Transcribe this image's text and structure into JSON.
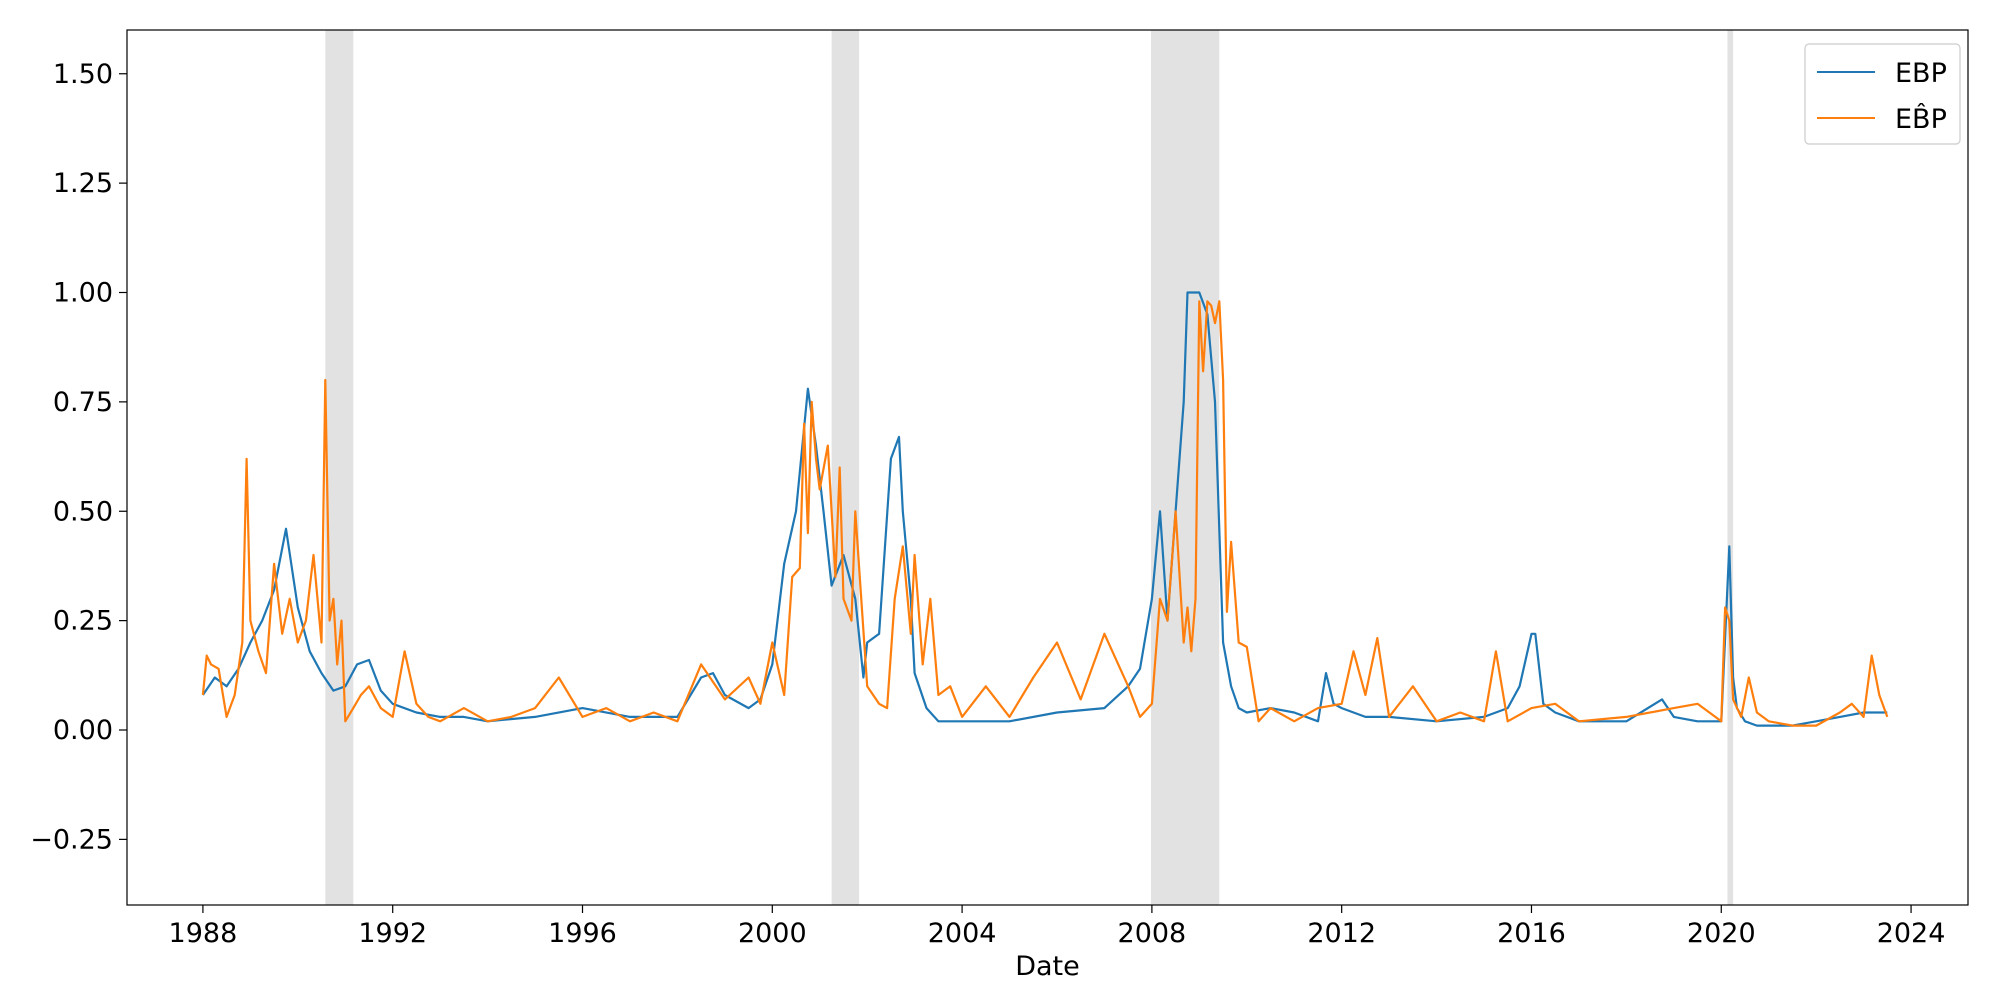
{
  "chart_data": {
    "type": "line",
    "title": "",
    "xlabel": "Date",
    "ylabel": "",
    "xlim": [
      1986.4,
      2025.2
    ],
    "ylim": [
      -0.4,
      1.6
    ],
    "x_ticks": [
      1988,
      1992,
      1996,
      2000,
      2004,
      2008,
      2012,
      2016,
      2020,
      2024
    ],
    "x_tick_labels": [
      "1988",
      "1992",
      "1996",
      "2000",
      "2004",
      "2008",
      "2012",
      "2016",
      "2020",
      "2024"
    ],
    "y_ticks": [
      -0.25,
      0.0,
      0.25,
      0.5,
      0.75,
      1.0,
      1.25,
      1.5
    ],
    "y_tick_labels": [
      "−0.25",
      "0.00",
      "0.25",
      "0.50",
      "0.75",
      "1.00",
      "1.25",
      "1.50"
    ],
    "grid": false,
    "legend_position": "top-right",
    "recession_shading": [
      [
        1990.58,
        1991.17
      ],
      [
        2001.25,
        2001.83
      ],
      [
        2007.98,
        2009.42
      ],
      [
        2020.13,
        2020.25
      ]
    ],
    "recession_color": "#e2e2e2",
    "series": [
      {
        "name": "EBP",
        "color": "#1f77b4",
        "x": [
          1988.0,
          1988.25,
          1988.5,
          1988.75,
          1989.0,
          1989.25,
          1989.5,
          1989.75,
          1990.0,
          1990.25,
          1990.5,
          1990.75,
          1991.0,
          1991.25,
          1991.5,
          1991.75,
          1992.0,
          1992.5,
          1993.0,
          1993.5,
          1994.0,
          1995.0,
          1996.0,
          1997.0,
          1998.0,
          1998.5,
          1998.75,
          1999.0,
          1999.5,
          1999.75,
          2000.0,
          2000.25,
          2000.5,
          2000.75,
          2000.92,
          2001.08,
          2001.25,
          2001.5,
          2001.75,
          2001.92,
          2002.0,
          2002.25,
          2002.5,
          2002.67,
          2002.75,
          2002.92,
          2003.0,
          2003.25,
          2003.5,
          2003.75,
          2004.0,
          2005.0,
          2006.0,
          2007.0,
          2007.5,
          2007.75,
          2008.0,
          2008.17,
          2008.33,
          2008.5,
          2008.67,
          2008.75,
          2008.83,
          2009.0,
          2009.17,
          2009.33,
          2009.5,
          2009.67,
          2009.83,
          2010.0,
          2010.5,
          2011.0,
          2011.5,
          2011.67,
          2011.83,
          2012.0,
          2012.5,
          2013.0,
          2014.0,
          2015.0,
          2015.5,
          2015.75,
          2016.0,
          2016.08,
          2016.25,
          2016.5,
          2017.0,
          2018.0,
          2018.75,
          2019.0,
          2019.5,
          2020.0,
          2020.17,
          2020.25,
          2020.33,
          2020.5,
          2020.75,
          2021.0,
          2021.5,
          2022.0,
          2022.5,
          2023.0,
          2023.25,
          2023.5
        ],
        "values": [
          0.08,
          0.12,
          0.1,
          0.14,
          0.2,
          0.25,
          0.32,
          0.46,
          0.28,
          0.18,
          0.13,
          0.09,
          0.1,
          0.15,
          0.16,
          0.09,
          0.06,
          0.04,
          0.03,
          0.03,
          0.02,
          0.03,
          0.05,
          0.03,
          0.03,
          0.12,
          0.13,
          0.08,
          0.05,
          0.07,
          0.15,
          0.38,
          0.5,
          0.78,
          0.65,
          0.5,
          0.33,
          0.4,
          0.3,
          0.12,
          0.2,
          0.22,
          0.62,
          0.67,
          0.5,
          0.3,
          0.13,
          0.05,
          0.02,
          0.02,
          0.02,
          0.02,
          0.04,
          0.05,
          0.1,
          0.14,
          0.3,
          0.5,
          0.25,
          0.5,
          0.75,
          1.0,
          1.0,
          1.0,
          0.95,
          0.75,
          0.2,
          0.1,
          0.05,
          0.04,
          0.05,
          0.04,
          0.02,
          0.13,
          0.06,
          0.05,
          0.03,
          0.03,
          0.02,
          0.03,
          0.05,
          0.1,
          0.22,
          0.22,
          0.06,
          0.04,
          0.02,
          0.02,
          0.07,
          0.03,
          0.02,
          0.02,
          0.42,
          0.12,
          0.05,
          0.02,
          0.01,
          0.01,
          0.01,
          0.02,
          0.03,
          0.04,
          0.04,
          0.04
        ]
      },
      {
        "name": "EB̂P",
        "color": "#ff7f0e",
        "x": [
          1988.0,
          1988.08,
          1988.17,
          1988.33,
          1988.5,
          1988.67,
          1988.83,
          1988.92,
          1989.0,
          1989.17,
          1989.33,
          1989.5,
          1989.67,
          1989.83,
          1990.0,
          1990.17,
          1990.33,
          1990.5,
          1990.58,
          1990.67,
          1990.75,
          1990.83,
          1990.92,
          1991.0,
          1991.17,
          1991.33,
          1991.5,
          1991.75,
          1992.0,
          1992.25,
          1992.5,
          1992.75,
          1993.0,
          1993.5,
          1994.0,
          1994.5,
          1995.0,
          1995.5,
          1996.0,
          1996.5,
          1997.0,
          1997.5,
          1998.0,
          1998.5,
          1999.0,
          1999.5,
          1999.75,
          2000.0,
          2000.25,
          2000.42,
          2000.58,
          2000.67,
          2000.75,
          2000.83,
          2000.92,
          2001.0,
          2001.17,
          2001.33,
          2001.42,
          2001.5,
          2001.67,
          2001.75,
          2002.0,
          2002.25,
          2002.42,
          2002.58,
          2002.75,
          2002.92,
          2003.0,
          2003.17,
          2003.33,
          2003.5,
          2003.75,
          2004.0,
          2004.5,
          2005.0,
          2005.5,
          2006.0,
          2006.5,
          2007.0,
          2007.5,
          2007.75,
          2008.0,
          2008.17,
          2008.33,
          2008.5,
          2008.67,
          2008.75,
          2008.83,
          2008.92,
          2009.0,
          2009.08,
          2009.17,
          2009.25,
          2009.33,
          2009.42,
          2009.5,
          2009.58,
          2009.67,
          2009.83,
          2010.0,
          2010.25,
          2010.5,
          2011.0,
          2011.5,
          2012.0,
          2012.25,
          2012.5,
          2012.75,
          2013.0,
          2013.5,
          2014.0,
          2014.5,
          2015.0,
          2015.25,
          2015.5,
          2016.0,
          2016.5,
          2017.0,
          2018.0,
          2019.0,
          2019.5,
          2020.0,
          2020.08,
          2020.17,
          2020.25,
          2020.42,
          2020.58,
          2020.75,
          2021.0,
          2021.5,
          2022.0,
          2022.5,
          2022.75,
          2023.0,
          2023.17,
          2023.33,
          2023.5
        ],
        "values": [
          0.08,
          0.17,
          0.15,
          0.14,
          0.03,
          0.08,
          0.2,
          0.62,
          0.25,
          0.18,
          0.13,
          0.38,
          0.22,
          0.3,
          0.2,
          0.25,
          0.4,
          0.2,
          0.8,
          0.25,
          0.3,
          0.15,
          0.25,
          0.02,
          0.05,
          0.08,
          0.1,
          0.05,
          0.03,
          0.18,
          0.06,
          0.03,
          0.02,
          0.05,
          0.02,
          0.03,
          0.05,
          0.12,
          0.03,
          0.05,
          0.02,
          0.04,
          0.02,
          0.15,
          0.07,
          0.12,
          0.06,
          0.2,
          0.08,
          0.35,
          0.37,
          0.7,
          0.45,
          0.75,
          0.62,
          0.55,
          0.65,
          0.35,
          0.6,
          0.3,
          0.25,
          0.5,
          0.1,
          0.06,
          0.05,
          0.3,
          0.42,
          0.22,
          0.4,
          0.15,
          0.3,
          0.08,
          0.1,
          0.03,
          0.1,
          0.03,
          0.12,
          0.2,
          0.07,
          0.22,
          0.1,
          0.03,
          0.06,
          0.3,
          0.25,
          0.5,
          0.2,
          0.28,
          0.18,
          0.3,
          0.98,
          0.82,
          0.98,
          0.97,
          0.93,
          0.98,
          0.8,
          0.27,
          0.43,
          0.2,
          0.19,
          0.02,
          0.05,
          0.02,
          0.05,
          0.06,
          0.18,
          0.08,
          0.21,
          0.03,
          0.1,
          0.02,
          0.04,
          0.02,
          0.18,
          0.02,
          0.05,
          0.06,
          0.02,
          0.03,
          0.05,
          0.06,
          0.02,
          0.28,
          0.25,
          0.07,
          0.03,
          0.12,
          0.04,
          0.02,
          0.01,
          0.01,
          0.04,
          0.06,
          0.03,
          0.17,
          0.08,
          0.03
        ]
      }
    ]
  }
}
